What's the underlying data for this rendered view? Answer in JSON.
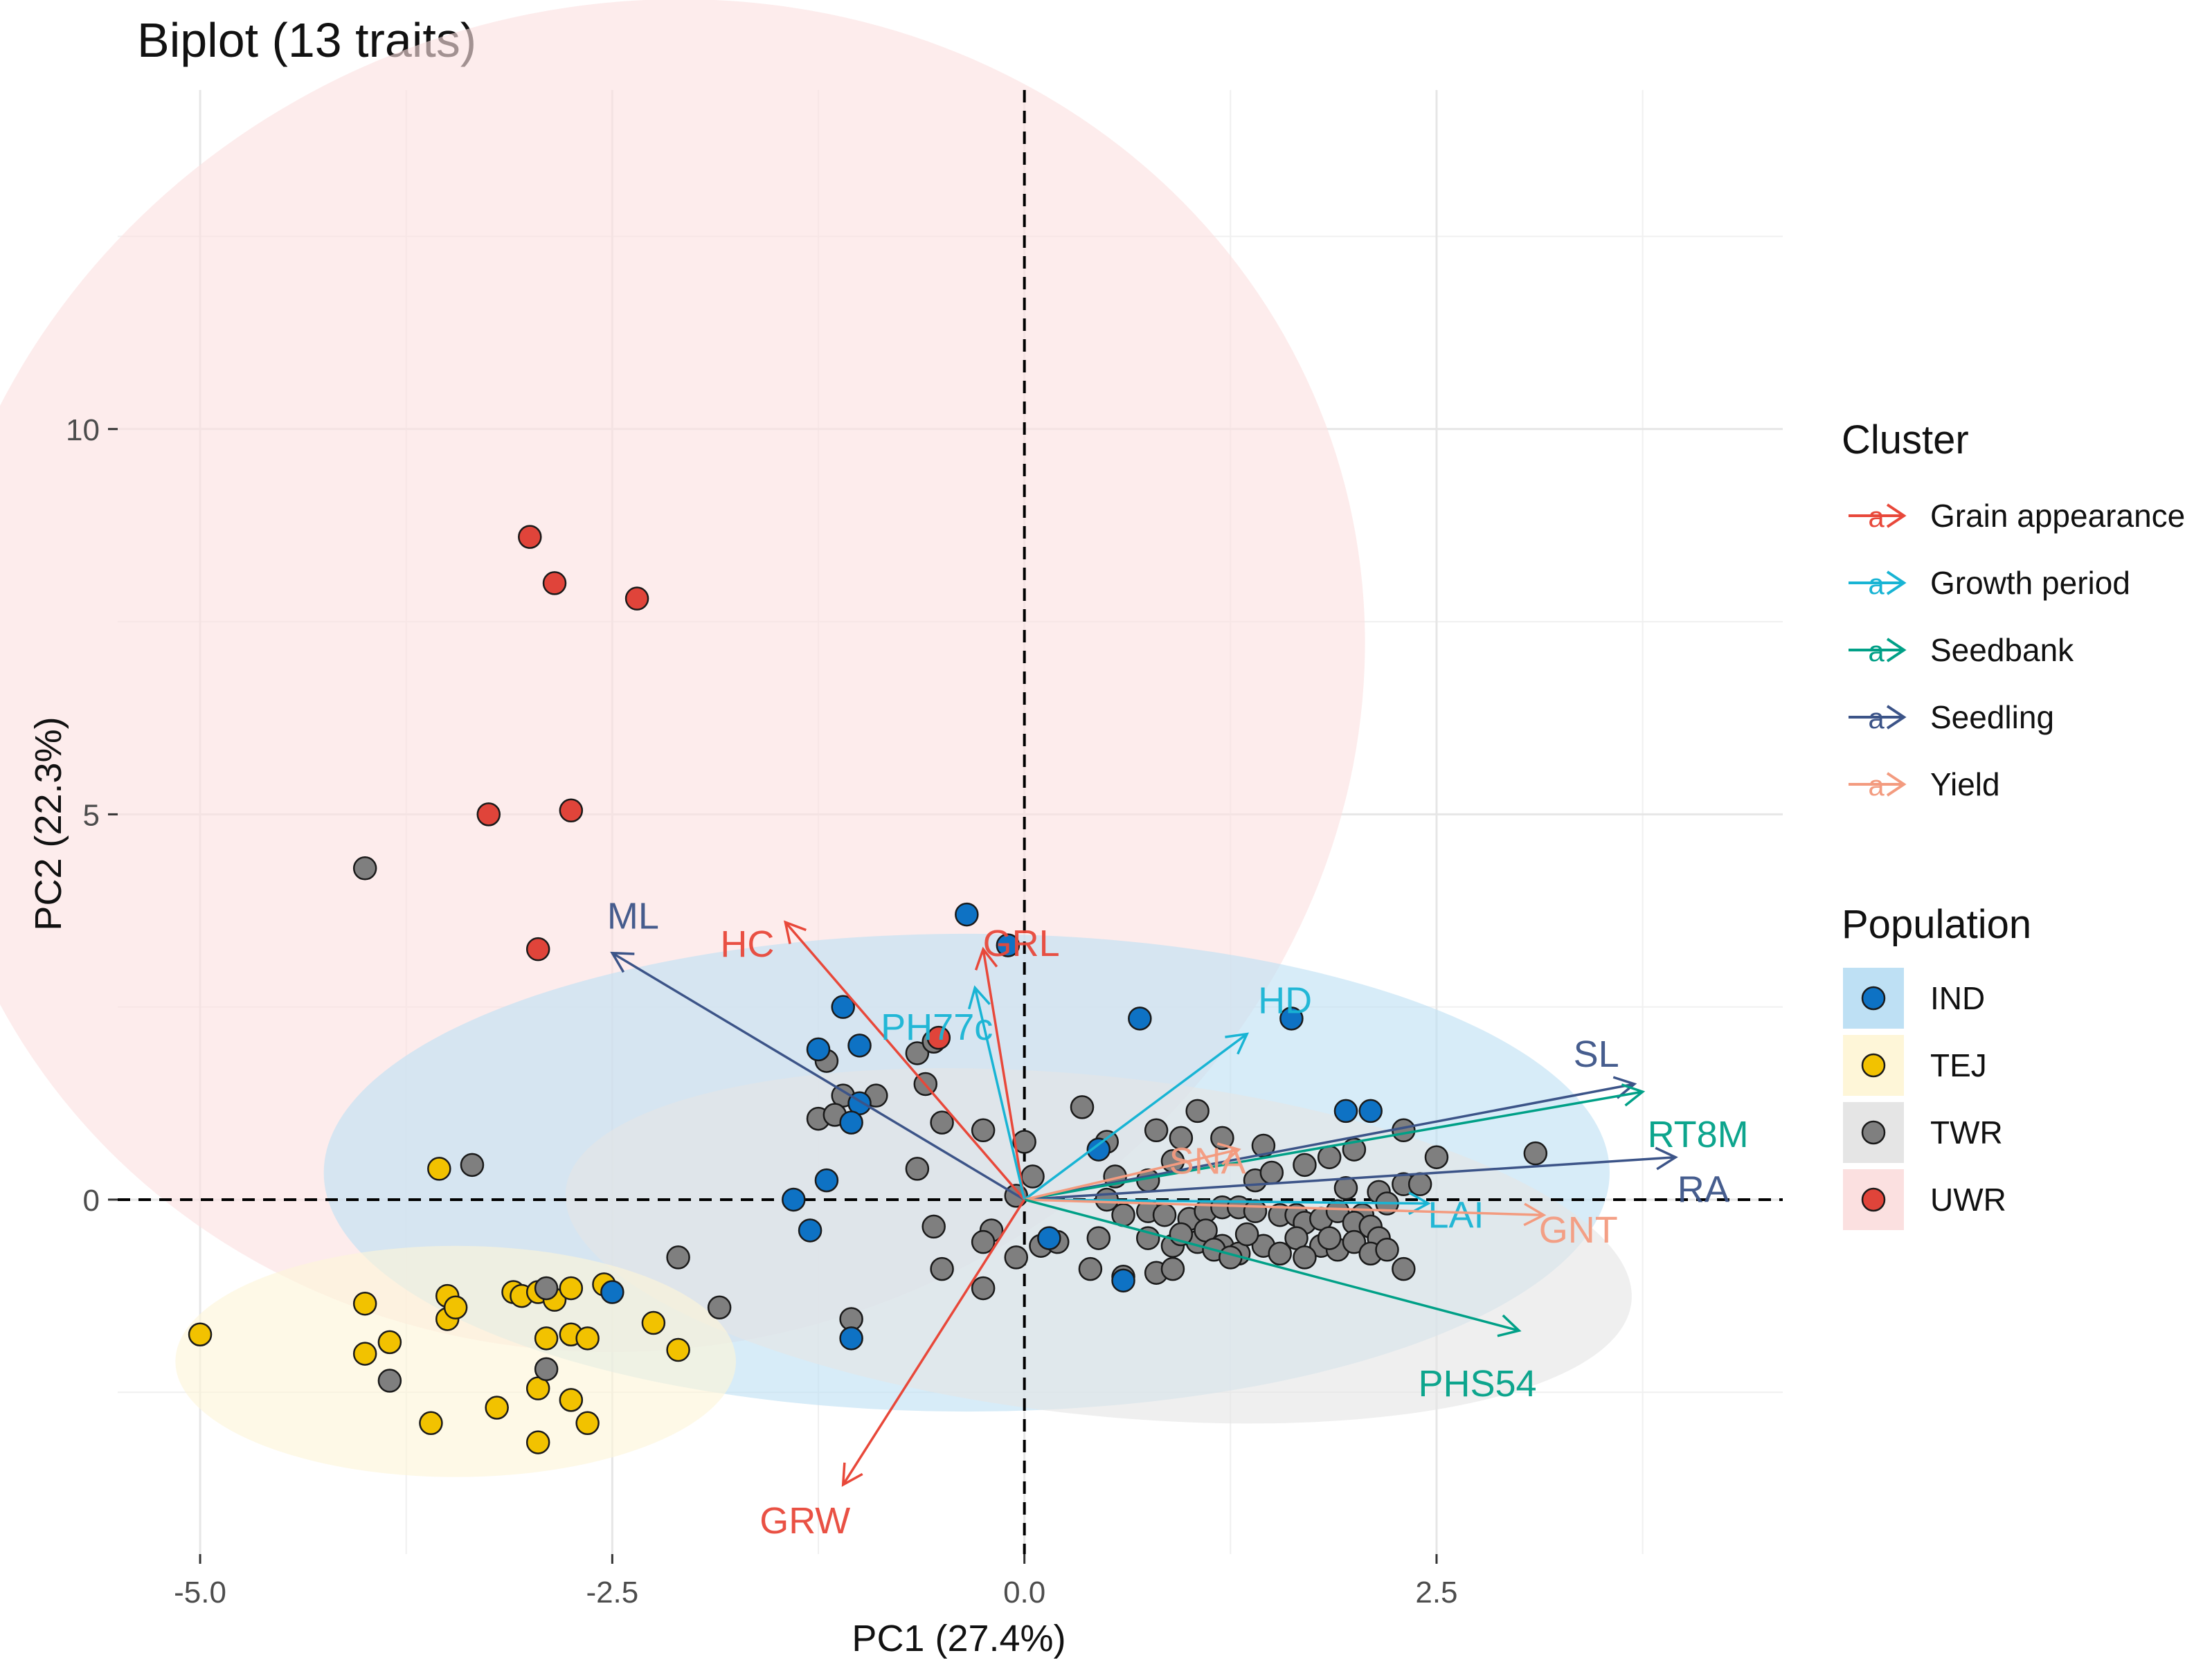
{
  "chart_data": {
    "type": "scatter",
    "subtype": "pca-biplot",
    "title": "Biplot (13 traits)",
    "xlabel": "PC1 (27.4%)",
    "ylabel": "PC2 (22.3%)",
    "xlim": [
      -5.5,
      4.6
    ],
    "ylim": [
      -4.6,
      14.4
    ],
    "xticks": [
      -5.0,
      -2.5,
      0.0,
      2.5
    ],
    "xtick_labels": [
      "-5.0",
      "-2.5",
      "0.0",
      "2.5"
    ],
    "yticks": [
      0,
      5,
      10
    ],
    "ytick_labels": [
      "0",
      "5",
      "10"
    ],
    "grid": true,
    "reference_lines": {
      "x": 0,
      "y": 0,
      "style": "dashed"
    },
    "legend_position": "right",
    "cluster_legend": {
      "title": "Cluster",
      "items": [
        {
          "name": "Grain appearance",
          "color": "#E8483A"
        },
        {
          "name": "Growth period",
          "color": "#18B4D4"
        },
        {
          "name": "Seedbank",
          "color": "#00A087"
        },
        {
          "name": "Seedling",
          "color": "#3C5488"
        },
        {
          "name": "Yield",
          "color": "#F39B7F"
        }
      ]
    },
    "population_legend": {
      "title": "Population",
      "items": [
        {
          "name": "IND",
          "color": "#0E72C4",
          "ellipse": "#BEE0F4"
        },
        {
          "name": "TEJ",
          "color": "#F2C200",
          "ellipse": "#FEF6D8"
        },
        {
          "name": "TWR",
          "color": "#7F7F7F",
          "ellipse": "#E5E5E5"
        },
        {
          "name": "UWR",
          "color": "#E0443A",
          "ellipse": "#FBE0E0"
        }
      ]
    },
    "ellipses": [
      {
        "population": "UWR",
        "center": [
          -2.3,
          6.8
        ],
        "rx": 4.4,
        "ry": 8.7,
        "angle_deg": 19
      },
      {
        "population": "IND",
        "center": [
          -0.35,
          0.35
        ],
        "rx": 3.1,
        "ry": 3.9,
        "angle_deg": 90
      },
      {
        "population": "TWR",
        "center": [
          0.45,
          -0.6
        ],
        "rx": 3.25,
        "ry": 2.2,
        "angle_deg": -6
      },
      {
        "population": "TEJ",
        "center": [
          -3.45,
          -2.1
        ],
        "rx": 1.7,
        "ry": 1.5,
        "angle_deg": 0
      }
    ],
    "loadings": [
      {
        "label": "ML",
        "cluster": "Seedling",
        "x": -2.5,
        "y": 3.2
      },
      {
        "label": "HC",
        "cluster": "Grain appearance",
        "x": -1.45,
        "y": 3.6
      },
      {
        "label": "GRL",
        "cluster": "Grain appearance",
        "x": -0.25,
        "y": 3.25
      },
      {
        "label": "PH77c",
        "cluster": "Growth period",
        "x": -0.3,
        "y": 2.75
      },
      {
        "label": "HD",
        "cluster": "Growth period",
        "x": 1.35,
        "y": 2.15
      },
      {
        "label": "SL",
        "cluster": "Seedling",
        "x": 3.7,
        "y": 1.5
      },
      {
        "label": "RT8M",
        "cluster": "Seedbank",
        "x": 3.75,
        "y": 1.4
      },
      {
        "label": "RA",
        "cluster": "Seedling",
        "x": 3.95,
        "y": 0.55
      },
      {
        "label": "LAI",
        "cluster": "Growth period",
        "x": 2.45,
        "y": -0.05
      },
      {
        "label": "GNT",
        "cluster": "Yield",
        "x": 3.15,
        "y": -0.2
      },
      {
        "label": "SNA",
        "cluster": "Yield",
        "x": 1.3,
        "y": 0.65
      },
      {
        "label": "PHS54",
        "cluster": "Seedbank",
        "x": 3.0,
        "y": -1.7
      },
      {
        "label": "GRW",
        "cluster": "Grain appearance",
        "x": -1.1,
        "y": -3.7
      }
    ],
    "series": [
      {
        "name": "UWR",
        "points": [
          [
            -3.0,
            8.6
          ],
          [
            -2.85,
            8.0
          ],
          [
            -2.35,
            7.8
          ],
          [
            -3.25,
            5.0
          ],
          [
            -2.75,
            5.05
          ],
          [
            -2.95,
            3.25
          ],
          [
            -0.52,
            2.1
          ]
        ]
      },
      {
        "name": "TEJ",
        "points": [
          [
            -5.0,
            -1.75
          ],
          [
            -4.0,
            -1.35
          ],
          [
            -3.85,
            -1.85
          ],
          [
            -3.5,
            -1.25
          ],
          [
            -3.5,
            -1.55
          ],
          [
            -3.45,
            -1.4
          ],
          [
            -3.1,
            -1.2
          ],
          [
            -3.05,
            -1.25
          ],
          [
            -2.95,
            -1.2
          ],
          [
            -2.85,
            -1.3
          ],
          [
            -2.75,
            -1.15
          ],
          [
            -2.55,
            -1.1
          ],
          [
            -2.25,
            -1.6
          ],
          [
            -2.1,
            -1.95
          ],
          [
            -2.9,
            -1.8
          ],
          [
            -2.75,
            -1.75
          ],
          [
            -2.65,
            -1.8
          ],
          [
            -4.0,
            -2.0
          ],
          [
            -3.6,
            -2.9
          ],
          [
            -3.2,
            -2.7
          ],
          [
            -2.95,
            -2.45
          ],
          [
            -2.75,
            -2.6
          ],
          [
            -2.65,
            -2.9
          ],
          [
            -2.95,
            -3.15
          ],
          [
            -3.55,
            0.4
          ]
        ]
      },
      {
        "name": "IND",
        "points": [
          [
            -0.35,
            3.7
          ],
          [
            -0.1,
            3.3
          ],
          [
            0.7,
            2.35
          ],
          [
            1.62,
            2.35
          ],
          [
            -1.1,
            2.5
          ],
          [
            -1.25,
            1.95
          ],
          [
            -1.0,
            2.0
          ],
          [
            -1.0,
            1.25
          ],
          [
            -1.05,
            1.0
          ],
          [
            -1.4,
            0.0
          ],
          [
            -1.2,
            0.25
          ],
          [
            -1.3,
            -0.4
          ],
          [
            -2.5,
            -1.2
          ],
          [
            -1.05,
            -1.8
          ],
          [
            0.45,
            0.65
          ],
          [
            1.95,
            1.15
          ],
          [
            2.1,
            1.15
          ],
          [
            0.6,
            -1.05
          ],
          [
            0.15,
            -0.5
          ]
        ]
      },
      {
        "name": "TWR",
        "points": [
          [
            -4.0,
            4.3
          ],
          [
            -3.35,
            0.45
          ],
          [
            -1.2,
            1.8
          ],
          [
            -1.1,
            1.35
          ],
          [
            -0.9,
            1.35
          ],
          [
            -1.25,
            1.05
          ],
          [
            -1.15,
            1.1
          ],
          [
            -0.65,
            1.9
          ],
          [
            -0.55,
            2.05
          ],
          [
            -0.6,
            1.5
          ],
          [
            -0.5,
            1.0
          ],
          [
            -0.25,
            0.9
          ],
          [
            -0.65,
            0.4
          ],
          [
            -0.2,
            -0.4
          ],
          [
            0.0,
            0.75
          ],
          [
            0.05,
            0.3
          ],
          [
            0.35,
            1.2
          ],
          [
            -0.05,
            0.05
          ],
          [
            1.05,
            1.15
          ],
          [
            0.8,
            0.9
          ],
          [
            0.95,
            0.8
          ],
          [
            0.5,
            0.75
          ],
          [
            0.55,
            0.3
          ],
          [
            0.75,
            0.25
          ],
          [
            0.9,
            0.5
          ],
          [
            1.2,
            0.8
          ],
          [
            1.45,
            0.7
          ],
          [
            1.4,
            0.25
          ],
          [
            1.5,
            0.35
          ],
          [
            1.7,
            0.45
          ],
          [
            1.85,
            0.55
          ],
          [
            2.0,
            0.65
          ],
          [
            2.3,
            0.9
          ],
          [
            2.5,
            0.55
          ],
          [
            3.1,
            0.6
          ],
          [
            2.3,
            0.2
          ],
          [
            2.4,
            0.2
          ],
          [
            1.95,
            0.15
          ],
          [
            2.15,
            0.1
          ],
          [
            2.2,
            -0.05
          ],
          [
            2.05,
            -0.2
          ],
          [
            0.5,
            0.0
          ],
          [
            0.6,
            -0.2
          ],
          [
            0.75,
            -0.15
          ],
          [
            0.85,
            -0.2
          ],
          [
            1.0,
            -0.25
          ],
          [
            1.1,
            -0.15
          ],
          [
            1.2,
            -0.1
          ],
          [
            1.3,
            -0.1
          ],
          [
            1.4,
            -0.15
          ],
          [
            1.55,
            -0.2
          ],
          [
            1.65,
            -0.2
          ],
          [
            1.7,
            -0.3
          ],
          [
            1.8,
            -0.25
          ],
          [
            1.9,
            -0.15
          ],
          [
            2.0,
            -0.3
          ],
          [
            2.1,
            -0.35
          ],
          [
            0.45,
            -0.5
          ],
          [
            0.75,
            -0.5
          ],
          [
            0.9,
            -0.6
          ],
          [
            1.05,
            -0.55
          ],
          [
            1.2,
            -0.6
          ],
          [
            1.3,
            -0.7
          ],
          [
            1.45,
            -0.6
          ],
          [
            1.55,
            -0.7
          ],
          [
            1.65,
            -0.5
          ],
          [
            1.8,
            -0.6
          ],
          [
            1.9,
            -0.65
          ],
          [
            2.0,
            -0.55
          ],
          [
            2.15,
            -0.5
          ],
          [
            2.1,
            -0.7
          ],
          [
            1.35,
            -0.45
          ],
          [
            1.1,
            -0.4
          ],
          [
            0.95,
            -0.45
          ],
          [
            0.4,
            -0.9
          ],
          [
            0.6,
            -1.0
          ],
          [
            0.8,
            -0.95
          ],
          [
            0.9,
            -0.9
          ],
          [
            1.15,
            -0.65
          ],
          [
            1.25,
            -0.75
          ],
          [
            1.7,
            -0.75
          ],
          [
            1.85,
            -0.5
          ],
          [
            2.2,
            -0.65
          ],
          [
            2.3,
            -0.9
          ],
          [
            0.1,
            -0.6
          ],
          [
            0.2,
            -0.55
          ],
          [
            -0.25,
            -0.55
          ],
          [
            -0.05,
            -0.75
          ],
          [
            -0.25,
            -1.15
          ],
          [
            -0.5,
            -0.9
          ],
          [
            -0.55,
            -0.35
          ],
          [
            -2.1,
            -0.75
          ],
          [
            -1.85,
            -1.4
          ],
          [
            -1.05,
            -1.55
          ],
          [
            -2.9,
            -1.15
          ],
          [
            -2.9,
            -2.2
          ],
          [
            -3.85,
            -2.35
          ]
        ]
      }
    ]
  }
}
